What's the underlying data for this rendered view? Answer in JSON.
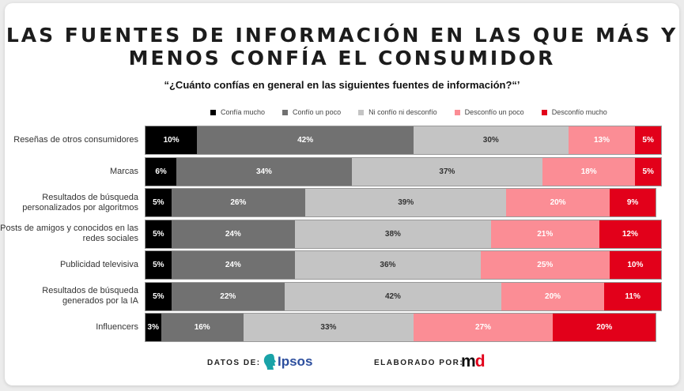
{
  "chart_data": {
    "type": "bar",
    "orientation": "horizontal",
    "stacked": true,
    "title": "LAS FUENTES DE INFORMACIÓN EN LAS QUE MÁS Y MENOS CONFÍA EL CONSUMIDOR",
    "subtitle": "“¿Cuánto confías en general en las siguientes fuentes de información?“’",
    "legend_position": "top",
    "categories": [
      "Reseñas de otros consumidores",
      "Marcas",
      "Resultados de búsqueda personalizados por algoritmos",
      "Posts de amigos y conocidos en las redes sociales",
      "Publicidad televisiva",
      "Resultados de búsqueda generados por la IA",
      "Influencers"
    ],
    "series": [
      {
        "name": "Confía mucho",
        "color": "#000000",
        "text_color": "#ffffff",
        "values": [
          10,
          6,
          5,
          5,
          5,
          5,
          3
        ]
      },
      {
        "name": "Confío un poco",
        "color": "#717171",
        "text_color": "#ffffff",
        "values": [
          42,
          34,
          26,
          24,
          24,
          22,
          16
        ]
      },
      {
        "name": "Ni confío ni desconfío",
        "color": "#c4c4c4",
        "text_color": "#333333",
        "values": [
          30,
          37,
          39,
          38,
          36,
          42,
          33
        ]
      },
      {
        "name": "Desconfío un poco",
        "color": "#fb8d95",
        "text_color": "#ffffff",
        "values": [
          13,
          18,
          20,
          21,
          25,
          20,
          27
        ]
      },
      {
        "name": "Desconfío mucho",
        "color": "#e2001a",
        "text_color": "#ffffff",
        "values": [
          5,
          5,
          9,
          12,
          10,
          11,
          20
        ]
      }
    ]
  },
  "footer": {
    "data_label": "DATOS DE:",
    "data_logo": "Ipsos",
    "made_label": "ELABORADO POR:",
    "made_logo": "md"
  }
}
